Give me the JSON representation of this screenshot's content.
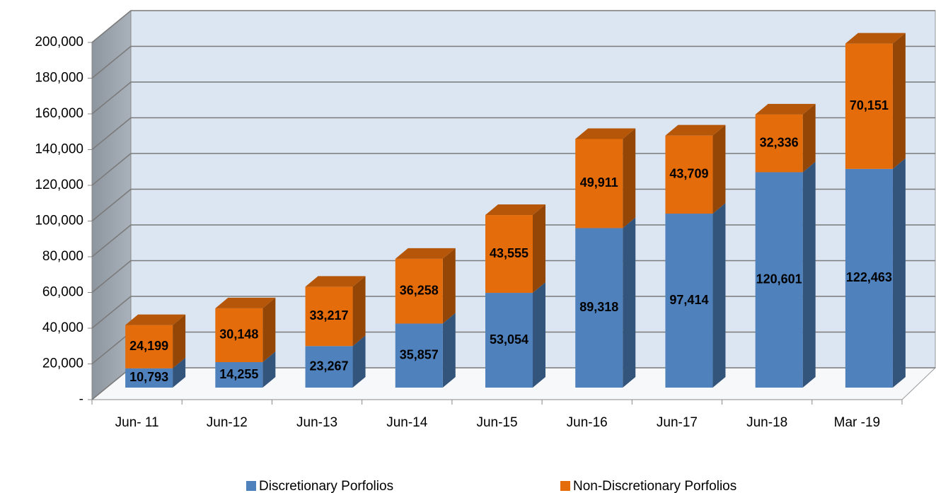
{
  "chart_data": {
    "type": "bar3d_stacked",
    "categories": [
      "Jun- 11",
      "Jun-12",
      "Jun-13",
      "Jun-14",
      "Jun-15",
      "Jun-16",
      "Jun-17",
      "Jun-18",
      "Mar -19"
    ],
    "series": [
      {
        "name": "Discretionary Porfolios",
        "color": "#4f81bd",
        "values": [
          10793,
          14255,
          23267,
          35857,
          53054,
          89318,
          97414,
          120601,
          122463
        ],
        "value_labels": [
          "10,793",
          "14,255",
          "23,267",
          "35,857",
          "53,054",
          "89,318",
          "97,414",
          "120,601",
          "122,463"
        ]
      },
      {
        "name": "Non-Discretionary Porfolios",
        "color": "#e46c0a",
        "values": [
          24199,
          30148,
          33217,
          36258,
          43555,
          49911,
          43709,
          32336,
          70151
        ],
        "value_labels": [
          "24,199",
          "30,148",
          "33,217",
          "36,258",
          "43,555",
          "49,911",
          "43,709",
          "32,336",
          "70,151"
        ]
      }
    ],
    "ylim": [
      0,
      200000
    ],
    "yticks": [
      {
        "value": 0,
        "label": "-"
      },
      {
        "value": 20000,
        "label": "20,000"
      },
      {
        "value": 40000,
        "label": "40,000"
      },
      {
        "value": 60000,
        "label": "60,000"
      },
      {
        "value": 80000,
        "label": "80,000"
      },
      {
        "value": 100000,
        "label": "100,000"
      },
      {
        "value": 120000,
        "label": "120,000"
      },
      {
        "value": 140000,
        "label": "140,000"
      },
      {
        "value": 160000,
        "label": "160,000"
      },
      {
        "value": 180000,
        "label": "180,000"
      },
      {
        "value": 200000,
        "label": "200,000"
      }
    ],
    "grid": true,
    "legend": "bottom"
  }
}
